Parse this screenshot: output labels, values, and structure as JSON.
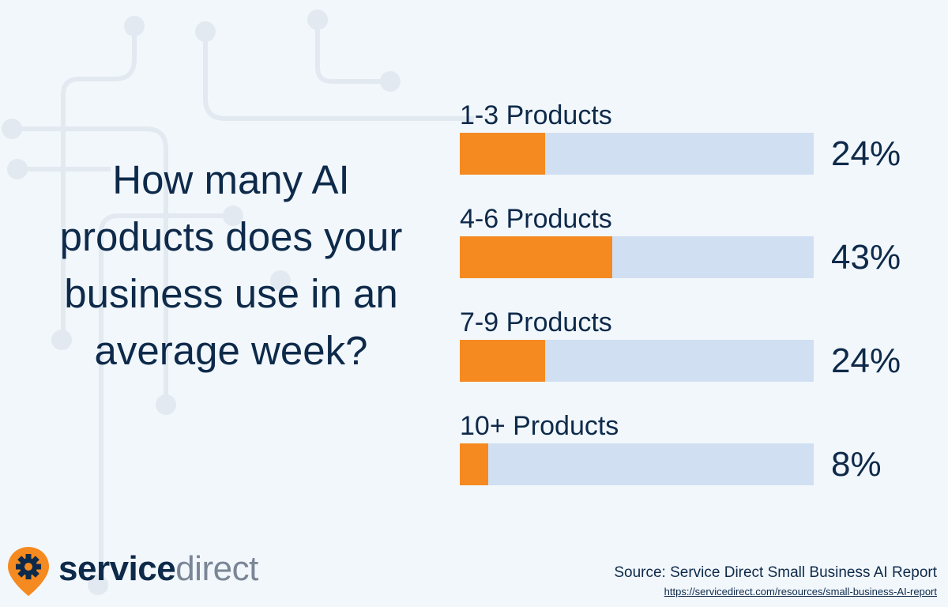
{
  "question": "How many AI products does your business use in an average week?",
  "chart_data": {
    "type": "bar",
    "orientation": "horizontal",
    "categories": [
      "1-3 Products",
      "4-6 Products",
      "7-9 Products",
      "10+ Products"
    ],
    "values": [
      24,
      43,
      24,
      8
    ],
    "value_labels": [
      "24%",
      "43%",
      "24%",
      "8%"
    ],
    "xlim": [
      0,
      100
    ],
    "fill_color": "#f58a21",
    "track_color": "#d0dff1"
  },
  "logo": {
    "word1": "service",
    "word2": "direct",
    "icon": "gear-pin-icon",
    "pin_color": "#f58a21"
  },
  "source": {
    "text": "Source: Service Direct Small Business AI Report",
    "url": "https://servicedirect.com/resources/small-business-AI-report"
  }
}
